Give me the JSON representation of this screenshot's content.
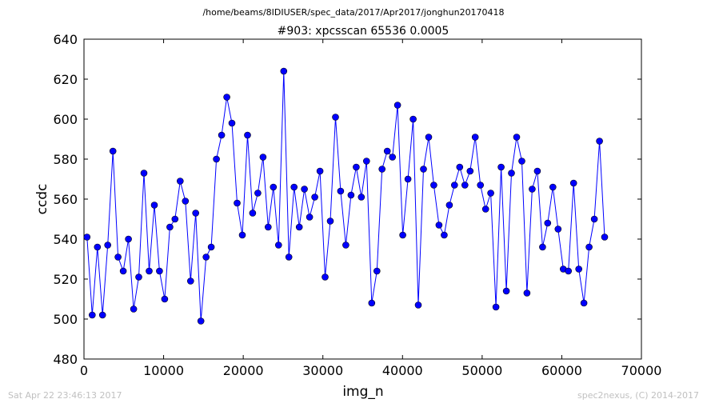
{
  "figure": {
    "suptitle": "/home/beams/8IDIUSER/spec_data/2017/Apr2017/jonghun20170418",
    "footer_left": "Sat Apr 22 23:46:13 2017",
    "footer_right": "spec2nexus, (C) 2014-2017"
  },
  "chart_data": {
    "type": "line",
    "title": "#903: xpcsscan 65536 0.0005",
    "xlabel": "img_n",
    "ylabel": "ccdc",
    "xlim": [
      0,
      70000
    ],
    "ylim": [
      480,
      640
    ],
    "xticks": [
      0,
      10000,
      20000,
      30000,
      40000,
      50000,
      60000,
      70000
    ],
    "yticks": [
      480,
      500,
      520,
      540,
      560,
      580,
      600,
      620,
      640
    ],
    "grid": false,
    "line_color": "#0000ff",
    "marker_color": "#0000ff",
    "marker": "circle",
    "series": [
      {
        "x": [
          383,
          1033,
          1683,
          2333,
          2983,
          3633,
          4283,
          4933,
          5583,
          6233,
          6883,
          7533,
          8183,
          8833,
          9483,
          10133,
          10783,
          11433,
          12083,
          12733,
          13383,
          14033,
          14683,
          15333,
          15983,
          16633,
          17283,
          17933,
          18583,
          19233,
          19883,
          20533,
          21183,
          21833,
          22483,
          23133,
          23783,
          24433,
          25083,
          25733,
          26383,
          27033,
          27683,
          28333,
          28983,
          29633,
          30283,
          30933,
          31583,
          32233,
          32883,
          33533,
          34183,
          34833,
          35483,
          36133,
          36783,
          37433,
          38083,
          38733,
          39383,
          40033,
          40683,
          41333,
          41983,
          42633,
          43283,
          43933,
          44583,
          45233,
          45883,
          46533,
          47183,
          47833,
          48483,
          49133,
          49783,
          50433,
          51083,
          51733,
          52383,
          53033,
          53683,
          54333,
          54983,
          55633,
          56283,
          56933,
          57583,
          58233,
          58883,
          59533,
          60183,
          60833,
          61483,
          62133,
          62783,
          63433,
          64083,
          64733,
          65383
        ],
        "y": [
          541,
          502,
          536,
          502,
          537,
          584,
          531,
          524,
          540,
          505,
          521,
          573,
          524,
          557,
          524,
          510,
          546,
          550,
          569,
          559,
          519,
          553,
          499,
          531,
          536,
          580,
          592,
          611,
          598,
          558,
          542,
          592,
          553,
          563,
          581,
          546,
          566,
          537,
          624,
          531,
          566,
          546,
          565,
          551,
          561,
          574,
          521,
          549,
          601,
          564,
          537,
          562,
          576,
          561,
          579,
          508,
          524,
          575,
          584,
          581,
          607,
          542,
          570,
          600,
          507,
          575,
          591,
          567,
          547,
          542,
          557,
          567,
          576,
          567,
          574,
          591,
          567,
          555,
          563,
          506,
          576,
          514,
          573,
          591,
          579,
          513,
          565,
          574,
          536,
          548,
          566,
          545,
          525,
          524,
          568,
          525,
          508,
          536,
          550,
          589,
          541
        ]
      }
    ]
  }
}
